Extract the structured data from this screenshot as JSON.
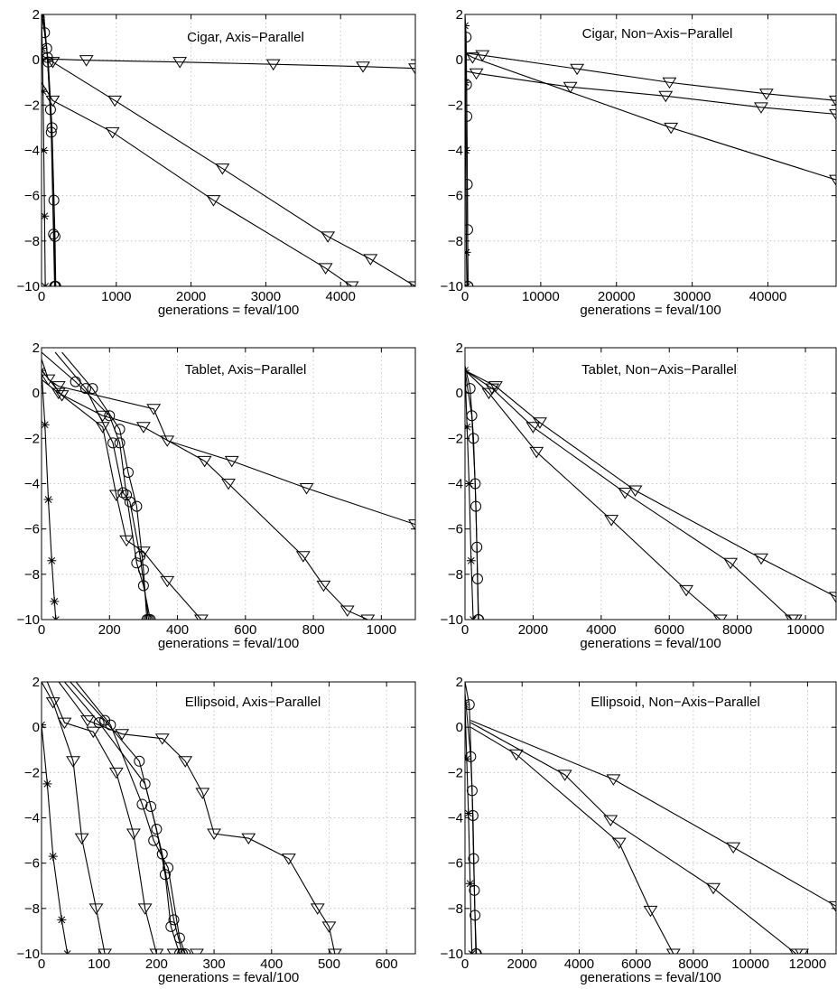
{
  "chart_data": [
    {
      "type": "line",
      "title": "Cigar, Axis−Parallel",
      "xlabel": "generations = feval/100",
      "xlim": [
        0,
        5000
      ],
      "ylim": [
        -10,
        2
      ],
      "xticks": [
        0,
        1000,
        2000,
        3000,
        4000
      ],
      "yticks": [
        -10,
        -8,
        -6,
        -4,
        -2,
        0,
        2
      ],
      "xtick_labels": [
        "0",
        "1000",
        "2000",
        "3000",
        "4000"
      ],
      "ytick_labels": [
        "−10",
        "−8",
        "−6",
        "−4",
        "−2",
        "0",
        "2"
      ],
      "grid": true,
      "series": [
        {
          "marker": "triangle",
          "x": [
            0,
            600,
            1850,
            3100,
            4300,
            5000
          ],
          "y": [
            0.05,
            -0.02,
            -0.1,
            -0.2,
            -0.3,
            -0.38
          ]
        },
        {
          "marker": "triangle",
          "x": [
            0,
            150,
            980,
            2420,
            3830,
            4400,
            5000
          ],
          "y": [
            0.2,
            -0.1,
            -1.8,
            -4.8,
            -7.8,
            -8.8,
            -10
          ]
        },
        {
          "marker": "triangle",
          "x": [
            0,
            150,
            950,
            2300,
            3800,
            4150
          ],
          "y": [
            -1.0,
            -1.8,
            -3.2,
            -6.2,
            -9.2,
            -10
          ]
        },
        {
          "marker": "circle",
          "x": [
            0,
            40,
            90,
            140,
            180,
            190
          ],
          "y": [
            2,
            1.2,
            -0.1,
            -3.0,
            -7.8,
            -10
          ]
        },
        {
          "marker": "circle",
          "x": [
            15,
            70,
            120,
            165,
            180
          ],
          "y": [
            2,
            0.5,
            -2.2,
            -6.2,
            -10
          ]
        },
        {
          "marker": "circle",
          "x": [
            30,
            80,
            130,
            160,
            175
          ],
          "y": [
            2,
            0.1,
            -3.2,
            -7.7,
            -10
          ]
        },
        {
          "marker": "star",
          "x": [
            0,
            10,
            20,
            30,
            40,
            50
          ],
          "y": [
            2,
            0.5,
            -1.4,
            -4.0,
            -6.9,
            -10
          ]
        }
      ]
    },
    {
      "type": "line",
      "title": "Cigar, Non−Axis−Parallel",
      "xlabel": "generations = feval/100",
      "xlim": [
        0,
        49000
      ],
      "ylim": [
        -10,
        2
      ],
      "xticks": [
        0,
        10000,
        20000,
        30000,
        40000
      ],
      "yticks": [
        -10,
        -8,
        -6,
        -4,
        -2,
        0,
        2
      ],
      "xtick_labels": [
        "0",
        "10000",
        "20000",
        "30000",
        "40000"
      ],
      "ytick_labels": [
        "−10",
        "−8",
        "−6",
        "−4",
        "−2",
        "0",
        "2"
      ],
      "grid": true,
      "series": [
        {
          "marker": "triangle",
          "x": [
            0,
            2300,
            14800,
            27000,
            39800,
            49000
          ],
          "y": [
            0.3,
            0.2,
            -0.4,
            -1.0,
            -1.5,
            -1.8
          ]
        },
        {
          "marker": "triangle",
          "x": [
            0,
            1500,
            13900,
            26500,
            39100,
            49000
          ],
          "y": [
            -0.5,
            -0.6,
            -1.2,
            -1.6,
            -2.1,
            -2.4
          ]
        },
        {
          "marker": "triangle",
          "x": [
            0,
            1000,
            27200,
            49000
          ],
          "y": [
            0.3,
            0.1,
            -3.0,
            -5.3
          ]
        },
        {
          "marker": "circle",
          "x": [
            0,
            150,
            250,
            350,
            400
          ],
          "y": [
            2,
            1.0,
            -2.5,
            -7.5,
            -10
          ]
        },
        {
          "marker": "circle",
          "x": [
            0,
            200,
            300,
            380
          ],
          "y": [
            1.5,
            -1.1,
            -5.5,
            -10
          ]
        },
        {
          "marker": "star",
          "x": [
            0,
            60,
            120,
            180,
            250
          ],
          "y": [
            1.5,
            -1.0,
            -4.0,
            -8.5,
            -10
          ]
        }
      ]
    },
    {
      "type": "line",
      "title": "Tablet, Axis−Parallel",
      "xlabel": "generations = feval/100",
      "xlim": [
        0,
        1100
      ],
      "ylim": [
        -10,
        2
      ],
      "xticks": [
        0,
        200,
        400,
        600,
        800,
        1000
      ],
      "yticks": [
        -10,
        -8,
        -6,
        -4,
        -2,
        0,
        2
      ],
      "xtick_labels": [
        "0",
        "200",
        "400",
        "600",
        "800",
        "1000"
      ],
      "ytick_labels": [
        "−10",
        "−8",
        "−6",
        "−4",
        "−2",
        "0",
        "2"
      ],
      "grid": true,
      "series": [
        {
          "marker": "triangle",
          "x": [
            0,
            20,
            50,
            330,
            370,
            560,
            780,
            1100
          ],
          "y": [
            1.5,
            0.6,
            0.3,
            -0.7,
            -2.1,
            -3.0,
            -4.2,
            -5.8
          ]
        },
        {
          "marker": "triangle",
          "x": [
            0,
            50,
            180,
            300,
            480,
            550,
            770,
            830,
            900,
            960
          ],
          "y": [
            0.6,
            0.0,
            -1.0,
            -1.5,
            -3.0,
            -4.0,
            -7.2,
            -8.5,
            -9.6,
            -10
          ]
        },
        {
          "marker": "triangle",
          "x": [
            0,
            60,
            180,
            220,
            250,
            300,
            370,
            470
          ],
          "y": [
            1.0,
            -0.1,
            -1.5,
            -4.5,
            -6.5,
            -7.0,
            -8.3,
            -10
          ]
        },
        {
          "marker": "circle",
          "x": [
            0,
            100,
            200,
            230,
            250,
            280,
            300,
            320
          ],
          "y": [
            1.8,
            0.5,
            -1.0,
            -2.2,
            -4.5,
            -7.5,
            -8.5,
            -10
          ]
        },
        {
          "marker": "circle",
          "x": [
            40,
            130,
            210,
            240,
            260,
            290,
            315
          ],
          "y": [
            1.8,
            0.2,
            -2.2,
            -4.4,
            -4.8,
            -7.2,
            -10
          ]
        },
        {
          "marker": "circle",
          "x": [
            60,
            150,
            230,
            255,
            280,
            300,
            310
          ],
          "y": [
            1.8,
            0.2,
            -1.6,
            -3.5,
            -5.0,
            -7.8,
            -10
          ]
        },
        {
          "marker": "star",
          "x": [
            0,
            10,
            20,
            30,
            38,
            42
          ],
          "y": [
            1.0,
            -1.4,
            -4.7,
            -7.4,
            -9.2,
            -10
          ]
        }
      ]
    },
    {
      "type": "line",
      "title": "Tablet, Non−Axis−Parallel",
      "xlabel": "generations = feval/100",
      "xlim": [
        0,
        10900
      ],
      "ylim": [
        -10,
        2
      ],
      "xticks": [
        0,
        2000,
        4000,
        6000,
        8000,
        10000
      ],
      "yticks": [
        -10,
        -8,
        -6,
        -4,
        -2,
        0,
        2
      ],
      "xtick_labels": [
        "0",
        "2000",
        "4000",
        "6000",
        "8000",
        "10000"
      ],
      "ytick_labels": [
        "−10",
        "−8",
        "−6",
        "−4",
        "−2",
        "0",
        "2"
      ],
      "grid": true,
      "series": [
        {
          "marker": "triangle",
          "x": [
            0,
            900,
            2200,
            5000,
            8700,
            10900
          ],
          "y": [
            1.0,
            0.3,
            -1.3,
            -4.3,
            -7.3,
            -9.0
          ]
        },
        {
          "marker": "triangle",
          "x": [
            0,
            800,
            2000,
            4700,
            7800,
            9600,
            9700
          ],
          "y": [
            1.0,
            0.2,
            -1.5,
            -4.4,
            -7.5,
            -10,
            -10
          ]
        },
        {
          "marker": "triangle",
          "x": [
            0,
            700,
            2100,
            4300,
            6500,
            7500
          ],
          "y": [
            1.0,
            0.0,
            -2.6,
            -5.6,
            -8.7,
            -10
          ]
        },
        {
          "marker": "circle",
          "x": [
            0,
            150,
            250,
            320,
            370,
            400
          ],
          "y": [
            1.2,
            0.2,
            -2.0,
            -5.0,
            -8.2,
            -10
          ]
        },
        {
          "marker": "circle",
          "x": [
            0,
            200,
            300,
            350,
            390
          ],
          "y": [
            1.0,
            -1.0,
            -4.0,
            -6.8,
            -10
          ]
        },
        {
          "marker": "star",
          "x": [
            0,
            60,
            120,
            180,
            240
          ],
          "y": [
            1.0,
            -1.5,
            -4.0,
            -7.4,
            -10
          ]
        }
      ]
    },
    {
      "type": "line",
      "title": "Ellipsoid, Axis−Parallel",
      "xlabel": "generations = feval/100",
      "xlim": [
        0,
        650
      ],
      "ylim": [
        -10,
        2
      ],
      "xticks": [
        0,
        100,
        200,
        300,
        400,
        500,
        600
      ],
      "yticks": [
        -10,
        -8,
        -6,
        -4,
        -2,
        0,
        2
      ],
      "xtick_labels": [
        "0",
        "100",
        "200",
        "300",
        "400",
        "500",
        "600"
      ],
      "ytick_labels": [
        "−10",
        "−8",
        "−6",
        "−4",
        "−2",
        "0",
        "2"
      ],
      "grid": true,
      "series": [
        {
          "marker": "triangle",
          "x": [
            30,
            80,
            140,
            210,
            250,
            280,
            300,
            360,
            430,
            480,
            500,
            510
          ],
          "y": [
            2,
            0.3,
            -0.3,
            -0.5,
            -1.5,
            -2.9,
            -4.7,
            -4.9,
            -5.8,
            -8.0,
            -8.8,
            -10
          ]
        },
        {
          "marker": "triangle",
          "x": [
            10,
            40,
            90,
            130,
            160,
            180,
            200,
            230,
            270
          ],
          "y": [
            2,
            0.2,
            -0.2,
            -2.0,
            -4.7,
            -8.0,
            -10,
            -10,
            -10
          ]
        },
        {
          "marker": "triangle",
          "x": [
            0,
            20,
            55,
            70,
            95,
            110
          ],
          "y": [
            2,
            1.1,
            -1.5,
            -4.9,
            -8.0,
            -10
          ]
        },
        {
          "marker": "circle",
          "x": [
            40,
            100,
            180,
            200,
            215,
            225,
            240
          ],
          "y": [
            2,
            0.2,
            -2.5,
            -4.5,
            -6.5,
            -8.8,
            -10
          ]
        },
        {
          "marker": "circle",
          "x": [
            50,
            110,
            170,
            190,
            210,
            230,
            245
          ],
          "y": [
            2,
            0.3,
            -1.5,
            -3.5,
            -5.6,
            -8.5,
            -10
          ]
        },
        {
          "marker": "circle",
          "x": [
            60,
            120,
            175,
            195,
            220,
            240,
            250
          ],
          "y": [
            2,
            0.1,
            -3.4,
            -5.0,
            -6.2,
            -9.3,
            -10
          ]
        },
        {
          "marker": "star",
          "x": [
            0,
            10,
            20,
            35,
            45
          ],
          "y": [
            0.1,
            -2.5,
            -5.7,
            -8.5,
            -10
          ]
        }
      ]
    },
    {
      "type": "line",
      "title": "Ellipsoid, Non−Axis−Parallel",
      "xlabel": "generations = feval/100",
      "xlim": [
        0,
        13000
      ],
      "ylim": [
        -10,
        2
      ],
      "xticks": [
        0,
        2000,
        4000,
        6000,
        8000,
        10000,
        12000
      ],
      "yticks": [
        -10,
        -8,
        -6,
        -4,
        -2,
        0,
        2
      ],
      "xtick_labels": [
        "0",
        "2000",
        "4000",
        "6000",
        "8000",
        "10000",
        "12000"
      ],
      "ytick_labels": [
        "−10",
        "−8",
        "−6",
        "−4",
        "−2",
        "0",
        "2"
      ],
      "grid": true,
      "series": [
        {
          "marker": "triangle",
          "x": [
            200,
            5200,
            9400,
            13000
          ],
          "y": [
            0.3,
            -2.3,
            -5.3,
            -7.9
          ]
        },
        {
          "marker": "triangle",
          "x": [
            200,
            3500,
            5100,
            8700,
            11600,
            11800
          ],
          "y": [
            0.2,
            -2.1,
            -4.1,
            -7.1,
            -10,
            -10
          ]
        },
        {
          "marker": "triangle",
          "x": [
            200,
            1800,
            5400,
            6500,
            7300
          ],
          "y": [
            0.0,
            -1.2,
            -5.1,
            -8.1,
            -10
          ]
        },
        {
          "marker": "circle",
          "x": [
            0,
            150,
            250,
            300,
            350,
            400
          ],
          "y": [
            2,
            1.0,
            -2.8,
            -5.8,
            -8.3,
            -10
          ]
        },
        {
          "marker": "circle",
          "x": [
            0,
            200,
            280,
            330,
            380
          ],
          "y": [
            1.5,
            -1.3,
            -3.9,
            -7.2,
            -10
          ]
        },
        {
          "marker": "star",
          "x": [
            0,
            60,
            120,
            180,
            240
          ],
          "y": [
            1.0,
            -1.4,
            -3.8,
            -6.9,
            -10
          ]
        }
      ]
    }
  ]
}
